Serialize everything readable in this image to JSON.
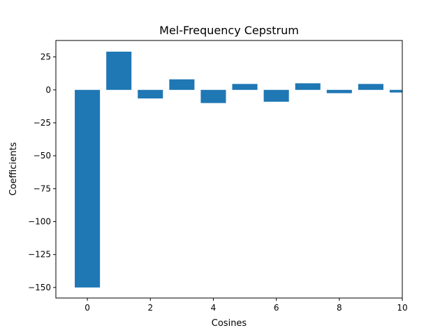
{
  "chart_data": {
    "type": "bar",
    "title": "Mel-Frequency Cepstrum",
    "xlabel": "Cosines",
    "ylabel": "Coefficients",
    "x": [
      0,
      1,
      2,
      3,
      4,
      5,
      6,
      7,
      8,
      9,
      10
    ],
    "values": [
      -150.0,
      29.0,
      -6.5,
      8.0,
      -10.0,
      4.5,
      -9.0,
      5.0,
      -2.5,
      4.5,
      -2.0
    ],
    "bar_width": 0.8,
    "xlim": [
      -1,
      10
    ],
    "ylim": [
      -158,
      37.5
    ],
    "xticks": [
      0,
      2,
      4,
      6,
      8,
      10
    ],
    "xtick_labels": [
      "0",
      "2",
      "4",
      "6",
      "8",
      "10"
    ],
    "yticks": [
      25,
      0,
      -25,
      -50,
      -75,
      -100,
      -125,
      -150
    ],
    "ytick_labels": [
      "25",
      "0",
      "−25",
      "−50",
      "−75",
      "−100",
      "−125",
      "−150"
    ],
    "bar_color": "#1f77b4",
    "grid": false,
    "legend": false
  }
}
